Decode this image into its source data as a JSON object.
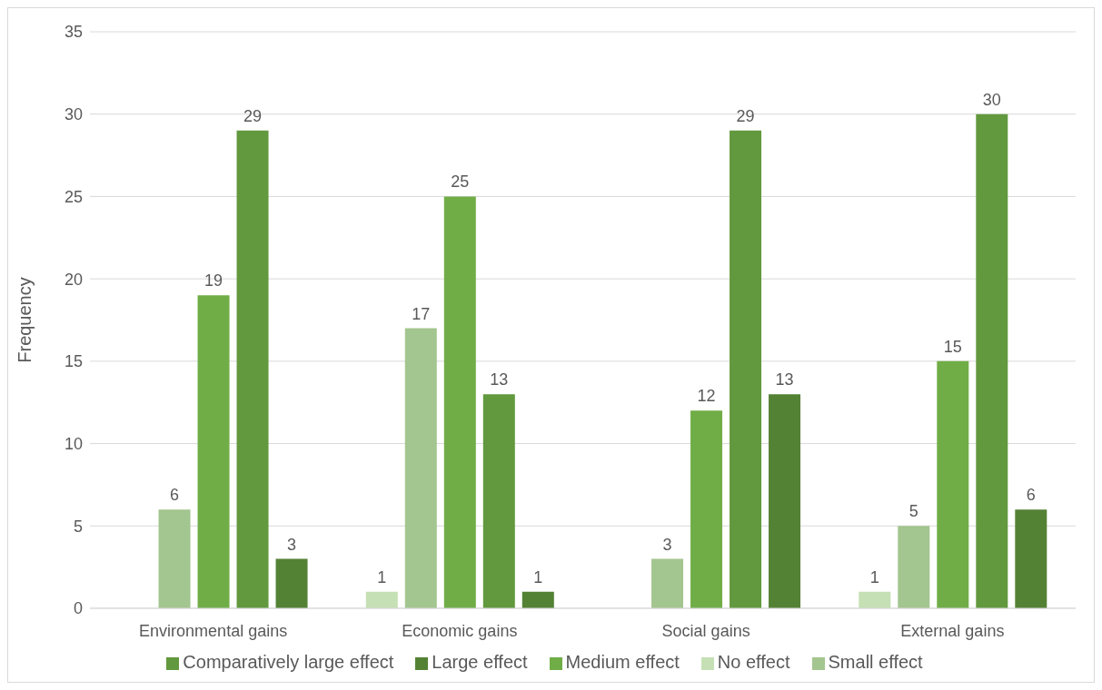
{
  "chart_data": {
    "type": "bar",
    "ylabel": "Frequency",
    "categories": [
      "Environmental gains",
      "Economic gains",
      "Social gains",
      "External gains"
    ],
    "series": [
      {
        "name": "No effect",
        "color": "#c5e0b4",
        "values": [
          null,
          1,
          null,
          1
        ]
      },
      {
        "name": "Small effect",
        "color": "#a3c58f",
        "values": [
          6,
          17,
          3,
          5
        ]
      },
      {
        "name": "Medium effect",
        "color": "#70ad47",
        "values": [
          19,
          25,
          12,
          15
        ]
      },
      {
        "name": "Comparatively large effect",
        "color": "#62993e",
        "values": [
          29,
          13,
          29,
          30
        ]
      },
      {
        "name": "Large effect",
        "color": "#548235",
        "values": [
          3,
          1,
          13,
          6
        ]
      }
    ],
    "ylim": [
      0,
      35
    ],
    "yticks": [
      0,
      5,
      10,
      15,
      20,
      25,
      30,
      35
    ],
    "grid": "y",
    "legend": "bottom",
    "data_labels": true
  }
}
